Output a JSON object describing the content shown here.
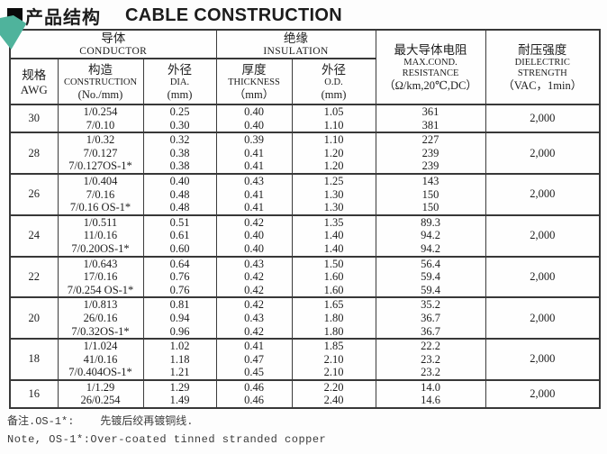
{
  "page": {
    "title_zh": "产品结构",
    "title_en": "CABLE CONSTRUCTION",
    "accent_color": "#4fb39c"
  },
  "table": {
    "header": {
      "conductor_lines": [
        "导体",
        "CONDUCTOR"
      ],
      "insulation_lines": [
        "绝缘",
        "INSULATION"
      ],
      "resistance_lines": [
        "最大导体电阻",
        "MAX.COND.",
        "RESISTANCE",
        "（Ω/km,20℃,DC）"
      ],
      "dielectric_lines": [
        "耐压强度",
        "DIELECTRIC",
        "STRENGTH",
        "（VAC，1min）"
      ],
      "awg_lines": [
        "规格",
        "AWG"
      ],
      "construction_lines": [
        "构造",
        "CONSTRUCTION",
        "(No./mm)"
      ],
      "dia_lines": [
        "外径",
        "DIA.",
        "(mm)"
      ],
      "thickness_lines": [
        "厚度",
        "THICKNESS",
        "（mm）"
      ],
      "od_lines": [
        "外径",
        "O.D.",
        "(mm)"
      ]
    },
    "groups": [
      {
        "awg": "30",
        "construction": [
          "1/0.254",
          "7/0.10"
        ],
        "dia": [
          "0.25",
          "0.30"
        ],
        "thickness": [
          "0.40",
          "0.40"
        ],
        "od": [
          "1.05",
          "1.10"
        ],
        "resistance": [
          "361",
          "381"
        ],
        "dielectric": "2,000"
      },
      {
        "awg": "28",
        "construction": [
          "1/0.32",
          "7/0.127",
          "7/0.127OS-1*"
        ],
        "dia": [
          "0.32",
          "0.38",
          "0.38"
        ],
        "thickness": [
          "0.39",
          "0.41",
          "0.41"
        ],
        "od": [
          "1.10",
          "1.20",
          "1.20"
        ],
        "resistance": [
          "227",
          "239",
          "239"
        ],
        "dielectric": "2,000"
      },
      {
        "awg": "26",
        "construction": [
          "1/0.404",
          "7/0.16",
          "7/0.16 OS-1*"
        ],
        "dia": [
          "0.40",
          "0.48",
          "0.48"
        ],
        "thickness": [
          "0.43",
          "0.41",
          "0.41"
        ],
        "od": [
          "1.25",
          "1.30",
          "1.30"
        ],
        "resistance": [
          "143",
          "150",
          "150"
        ],
        "dielectric": "2,000"
      },
      {
        "awg": "24",
        "construction": [
          "1/0.511",
          "11/0.16",
          "7/0.20OS-1*"
        ],
        "dia": [
          "0.51",
          "0.61",
          "0.60"
        ],
        "thickness": [
          "0.42",
          "0.40",
          "0.40"
        ],
        "od": [
          "1.35",
          "1.40",
          "1.40"
        ],
        "resistance": [
          "89.3",
          "94.2",
          "94.2"
        ],
        "dielectric": "2,000"
      },
      {
        "awg": "22",
        "construction": [
          "1/0.643",
          "17/0.16",
          "7/0.254 OS-1*"
        ],
        "dia": [
          "0.64",
          "0.76",
          "0.76"
        ],
        "thickness": [
          "0.43",
          "0.42",
          "0.42"
        ],
        "od": [
          "1.50",
          "1.60",
          "1.60"
        ],
        "resistance": [
          "56.4",
          "59.4",
          "59.4"
        ],
        "dielectric": "2,000"
      },
      {
        "awg": "20",
        "construction": [
          "1/0.813",
          "26/0.16",
          "7/0.32OS-1*"
        ],
        "dia": [
          "0.81",
          "0.94",
          "0.96"
        ],
        "thickness": [
          "0.42",
          "0.43",
          "0.42"
        ],
        "od": [
          "1.65",
          "1.80",
          "1.80"
        ],
        "resistance": [
          "35.2",
          "36.7",
          "36.7"
        ],
        "dielectric": "2,000"
      },
      {
        "awg": "18",
        "construction": [
          "1/1.024",
          "41/0.16",
          "7/0.404OS-1*"
        ],
        "dia": [
          "1.02",
          "1.18",
          "1.21"
        ],
        "thickness": [
          "0.41",
          "0.47",
          "0.45"
        ],
        "od": [
          "1.85",
          "2.10",
          "2.10"
        ],
        "resistance": [
          "22.2",
          "23.2",
          "23.2"
        ],
        "dielectric": "2,000"
      },
      {
        "awg": "16",
        "construction": [
          "1/1.29",
          "26/0.254"
        ],
        "dia": [
          "1.29",
          "1.49"
        ],
        "thickness": [
          "0.46",
          "0.46"
        ],
        "od": [
          "2.20",
          "2.40"
        ],
        "resistance": [
          "14.0",
          "14.6"
        ],
        "dielectric": "2,000"
      }
    ]
  },
  "footer": {
    "note_zh": "备注.OS-1*:    先镀后绞再镀铜线.",
    "note_en": "Note, OS-1*:Over-coated tinned stranded copper"
  }
}
